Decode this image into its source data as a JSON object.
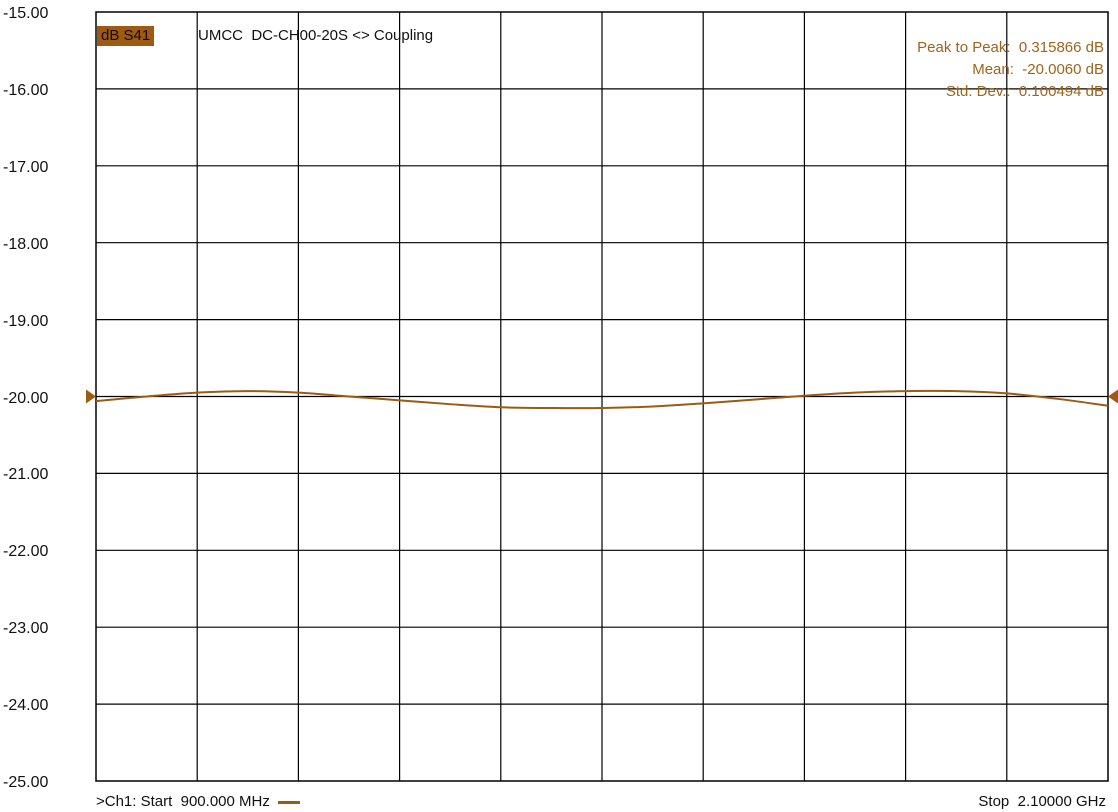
{
  "trace_label": "dB S41",
  "trace_title": "UMCC  DC-CH00-20S <> Coupling",
  "stats": [
    {
      "label": "Peak to Peak:",
      "value": "0.315866 dB"
    },
    {
      "label": "Mean:",
      "value": "-20.0060 dB"
    },
    {
      "label": "Std. Dev.:",
      "value": "0.100494 dB"
    }
  ],
  "footer": {
    "start": ">Ch1: Start  900.000 MHz",
    "stop": "Stop  2.10000 GHz"
  },
  "colors": {
    "trace": "#9c5a14",
    "grid": "#000000",
    "background": "#ffffff"
  },
  "chart_data": {
    "type": "line",
    "title": "",
    "xlabel": "",
    "ylabel": "",
    "xlim": [
      900,
      2100
    ],
    "x_unit": "MHz",
    "ylim": [
      -25.0,
      -15.0
    ],
    "y_ticks": [
      "-15.00",
      "-16.00",
      "-17.00",
      "-18.00",
      "-19.00",
      "-20.00",
      "-21.00",
      "-22.00",
      "-23.00",
      "-24.00",
      "-25.00"
    ],
    "x_divisions": 10,
    "grid": true,
    "reference_level": -20.0,
    "series": [
      {
        "name": "dB S41",
        "x": [
          900,
          960,
          1020,
          1080,
          1140,
          1200,
          1260,
          1320,
          1380,
          1440,
          1500,
          1560,
          1620,
          1680,
          1740,
          1800,
          1860,
          1920,
          1980,
          2040,
          2100
        ],
        "y": [
          -20.06,
          -20.0,
          -19.95,
          -19.93,
          -19.95,
          -20.0,
          -20.05,
          -20.1,
          -20.14,
          -20.15,
          -20.15,
          -20.13,
          -20.09,
          -20.04,
          -19.99,
          -19.95,
          -19.93,
          -19.93,
          -19.96,
          -20.03,
          -20.12
        ]
      }
    ]
  }
}
